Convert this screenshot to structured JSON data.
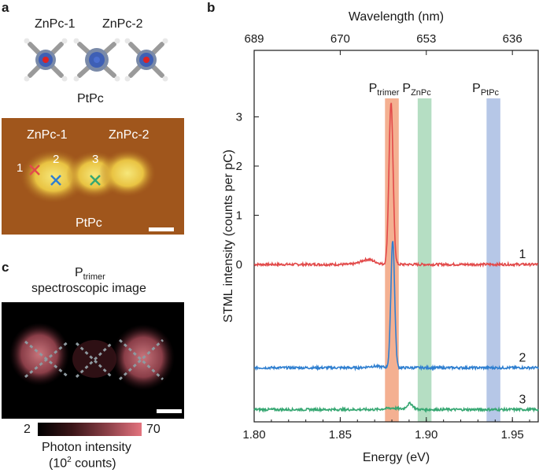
{
  "panels": {
    "a": {
      "letter": "a",
      "model_labels": [
        "ZnPc-1",
        "ZnPc-2",
        "PtPc"
      ],
      "stm_labels": [
        "ZnPc-1",
        "ZnPc-2",
        "PtPc"
      ],
      "markers": [
        {
          "label": "1",
          "color": "#e24a4a"
        },
        {
          "label": "2",
          "color": "#2f7fd0"
        },
        {
          "label": "3",
          "color": "#36a772"
        }
      ]
    },
    "b": {
      "letter": "b"
    },
    "c": {
      "letter": "c",
      "title_main": "P",
      "title_sub": "trimer",
      "title_line2": "spectroscopic image",
      "colorbar_min": "2",
      "colorbar_max": "70",
      "colorbar_label_line1": "Photon intensity",
      "colorbar_label_line2_pre": "(10",
      "colorbar_label_line2_sup": "2",
      "colorbar_label_line2_post": " counts)"
    }
  },
  "chart_data": {
    "type": "line",
    "xlabel": "Energy (eV)",
    "ylabel": "STML intensity (counts per pC)",
    "top_axis_label": "Wavelength (nm)",
    "xlim": [
      1.8,
      1.965
    ],
    "x_ticks": [
      "1.80",
      "1.85",
      "1.90",
      "1.95"
    ],
    "top_ticks": [
      {
        "label": "689",
        "energy": 1.8
      },
      {
        "label": "670",
        "energy": 1.85
      },
      {
        "label": "653",
        "energy": 1.9
      },
      {
        "label": "636",
        "energy": 1.95
      }
    ],
    "y_ticks": [
      "0",
      "1",
      "2",
      "3"
    ],
    "bands": [
      {
        "main": "P",
        "sub": "trimer",
        "center": 1.88,
        "width": 0.008,
        "color": "#f2a27e"
      },
      {
        "main": "P",
        "sub": "ZnPc",
        "center": 1.899,
        "width": 0.008,
        "color": "#a8d8b9"
      },
      {
        "main": "P",
        "sub": "PtPc",
        "center": 1.939,
        "width": 0.008,
        "color": "#a9bde3"
      }
    ],
    "series": [
      {
        "name": "1",
        "color": "#e24a4a",
        "offset": 0,
        "peak_energy": 1.8795,
        "peak_height": 3.3,
        "peak_width": 0.0012,
        "shoulder_energy": 1.866,
        "shoulder_height": 0.1
      },
      {
        "name": "2",
        "color": "#2f7fd0",
        "offset": -2.1,
        "peak_energy": 1.8805,
        "peak_height": 2.6,
        "peak_width": 0.0011,
        "shoulder_energy": 1.87,
        "shoulder_height": 0.03
      },
      {
        "name": "3",
        "color": "#36a772",
        "offset": -2.95,
        "peak_energy": 1.8905,
        "peak_height": 0.12,
        "peak_width": 0.0018,
        "shoulder_energy": 1.88,
        "shoulder_height": 0.03
      }
    ]
  }
}
